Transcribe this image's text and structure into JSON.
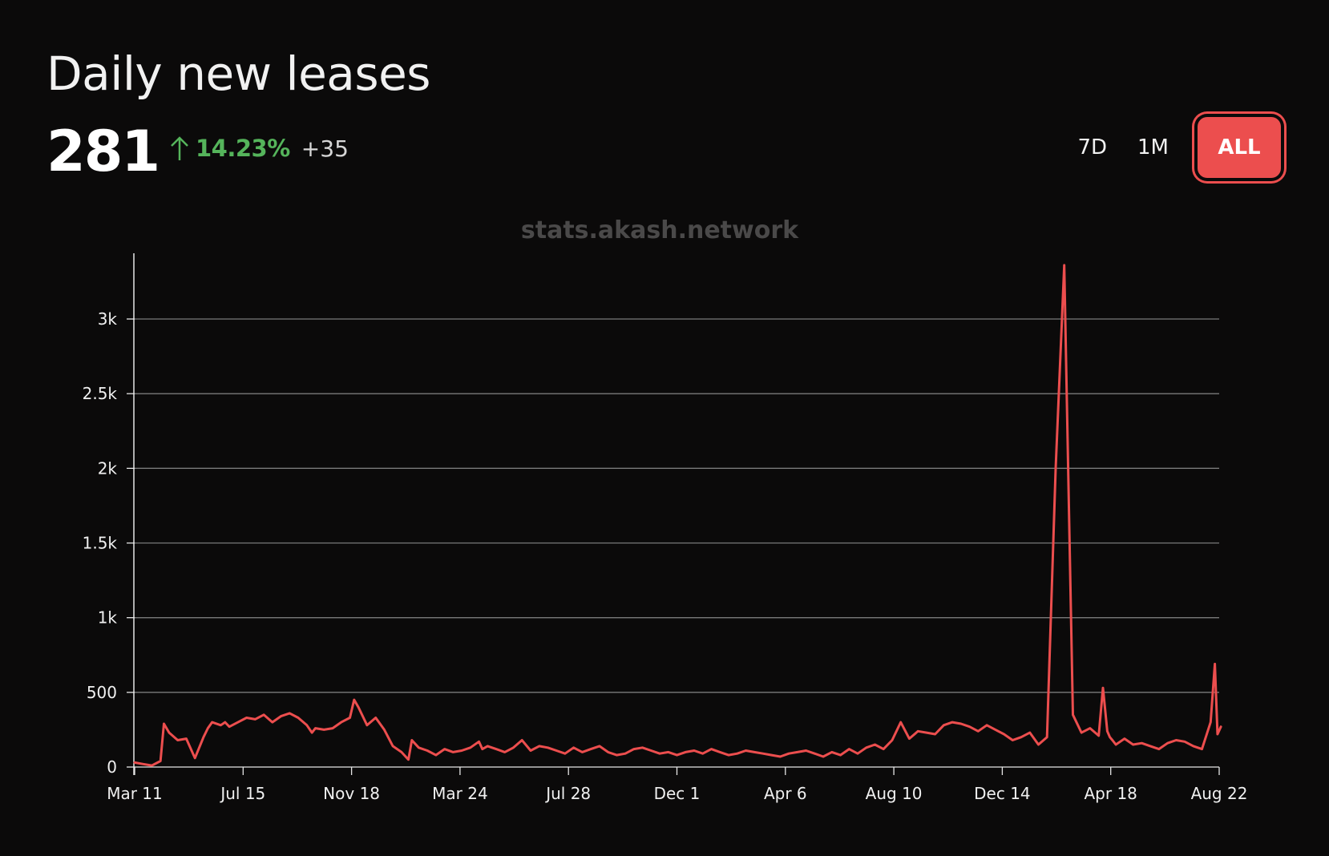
{
  "header": {
    "title": "Daily new leases",
    "value": "281",
    "change_percent": "14.23%",
    "change_abs": "+35",
    "change_direction": "up"
  },
  "range_buttons": [
    {
      "label": "7D",
      "active": false
    },
    {
      "label": "1M",
      "active": false
    },
    {
      "label": "ALL",
      "active": true
    }
  ],
  "watermark": "stats.akash.network",
  "colors": {
    "accent": "#ec4e4e",
    "positive": "#55b45b",
    "background": "#0b0a0a",
    "grid": "#7a7a7a"
  },
  "chart_data": {
    "type": "line",
    "title": "",
    "xlabel": "",
    "ylabel": "",
    "ylim": [
      0,
      3400
    ],
    "yticks": [
      0,
      500,
      1000,
      1500,
      2000,
      2500,
      3000
    ],
    "ytick_labels": [
      "0",
      "500",
      "1k",
      "1.5k",
      "2k",
      "2.5k",
      "3k"
    ],
    "xticks": [
      0,
      126,
      252,
      378,
      504,
      630,
      756,
      882,
      1008,
      1134,
      1260
    ],
    "xtick_labels": [
      "Mar 11",
      "Jul 15",
      "Nov 18",
      "Mar 24",
      "Jul 28",
      "Dec 1",
      "Apr 6",
      "Aug 10",
      "Dec 14",
      "Apr 18",
      "Aug 22"
    ],
    "grid": true,
    "series": [
      {
        "color": "#ec4e4e",
        "x": [
          0,
          10,
          20,
          30,
          34,
          40,
          50,
          60,
          70,
          80,
          85,
          90,
          100,
          105,
          110,
          120,
          130,
          140,
          150,
          160,
          170,
          180,
          190,
          200,
          206,
          210,
          220,
          230,
          240,
          250,
          255,
          260,
          270,
          280,
          290,
          300,
          310,
          318,
          322,
          330,
          340,
          350,
          360,
          370,
          380,
          390,
          400,
          404,
          410,
          420,
          430,
          440,
          450,
          460,
          470,
          480,
          490,
          500,
          510,
          520,
          530,
          540,
          550,
          560,
          570,
          580,
          590,
          600,
          610,
          620,
          630,
          640,
          650,
          660,
          670,
          680,
          690,
          700,
          710,
          720,
          730,
          740,
          750,
          760,
          770,
          780,
          790,
          800,
          810,
          820,
          830,
          840,
          850,
          860,
          870,
          880,
          890,
          900,
          910,
          920,
          930,
          940,
          950,
          960,
          970,
          980,
          990,
          1000,
          1010,
          1020,
          1030,
          1040,
          1050,
          1060,
          1070,
          1080,
          1090,
          1100,
          1110,
          1120,
          1125,
          1130,
          1133,
          1136,
          1140,
          1145,
          1150,
          1160,
          1170,
          1180,
          1190,
          1200,
          1210,
          1220,
          1230,
          1240,
          1250,
          1255,
          1258,
          1262
        ],
        "values": [
          30,
          20,
          10,
          40,
          290,
          230,
          180,
          190,
          60,
          200,
          260,
          300,
          280,
          300,
          270,
          300,
          330,
          320,
          350,
          300,
          340,
          360,
          330,
          280,
          230,
          260,
          250,
          260,
          300,
          330,
          450,
          400,
          280,
          330,
          250,
          140,
          100,
          50,
          180,
          130,
          110,
          80,
          120,
          100,
          110,
          130,
          170,
          120,
          140,
          120,
          100,
          130,
          180,
          110,
          140,
          130,
          110,
          90,
          130,
          100,
          120,
          140,
          100,
          80,
          90,
          120,
          130,
          110,
          90,
          100,
          80,
          100,
          110,
          90,
          120,
          100,
          80,
          90,
          110,
          100,
          90,
          80,
          70,
          90,
          100,
          110,
          90,
          70,
          100,
          80,
          120,
          90,
          130,
          150,
          120,
          180,
          300,
          190,
          240,
          230,
          220,
          280,
          300,
          290,
          270,
          240,
          280,
          250,
          220,
          180,
          200,
          230,
          150,
          200,
          2000,
          3360,
          350,
          230,
          260,
          210,
          530,
          240,
          200,
          180,
          150,
          170,
          190,
          150,
          160,
          140,
          120,
          160,
          180,
          170,
          140,
          120,
          300,
          690,
          220,
          270
        ]
      }
    ]
  }
}
